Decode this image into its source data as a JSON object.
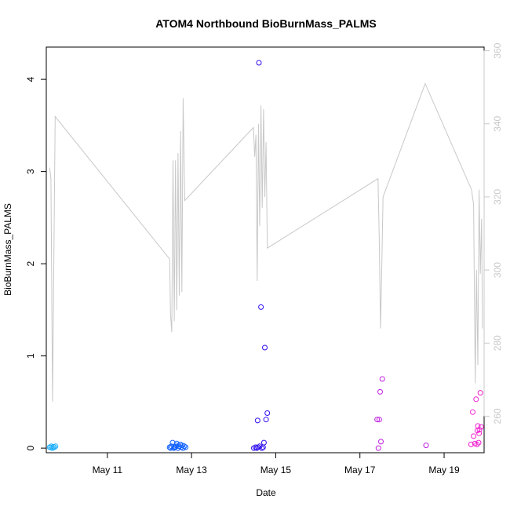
{
  "chart_data": {
    "type": "scatter",
    "title": "ATOM4 Northbound BioBurnMass_PALMS",
    "xlabel": "Date",
    "ylabel": "BioBurnMass_PALMS",
    "xlim": [
      9.55,
      19.95
    ],
    "ylim": [
      -0.05,
      4.35
    ],
    "x_ticks": [
      {
        "value": 11,
        "label": "May 11"
      },
      {
        "value": 13,
        "label": "May 13"
      },
      {
        "value": 15,
        "label": "May 15"
      },
      {
        "value": 17,
        "label": "May 17"
      },
      {
        "value": 19,
        "label": "May 19"
      }
    ],
    "y_ticks": [
      0,
      1,
      2,
      3,
      4
    ],
    "y2lim": [
      250,
      361
    ],
    "y2_ticks": [
      260,
      280,
      300,
      320,
      340,
      360
    ],
    "grid": false,
    "legend": "none",
    "colors": {
      "line": "#c8c8c8",
      "right_axis": "#c8c8c8",
      "axis": "#000000"
    },
    "series": [
      {
        "color": "#20b0ff",
        "points": [
          [
            9.63,
            0.01
          ],
          [
            9.67,
            0.02
          ],
          [
            9.7,
            0.0
          ],
          [
            9.74,
            0.01
          ],
          [
            9.77,
            0.02
          ],
          [
            9.72,
            0.015
          ],
          [
            9.66,
            0.005
          ]
        ]
      },
      {
        "color": "#1060ff",
        "points": [
          [
            12.48,
            0.01
          ],
          [
            12.52,
            0.02
          ],
          [
            12.55,
            0.06
          ],
          [
            12.58,
            0.0
          ],
          [
            12.6,
            0.01
          ],
          [
            12.63,
            0.03
          ],
          [
            12.65,
            0.05
          ],
          [
            12.68,
            0.0
          ],
          [
            12.7,
            0.02
          ],
          [
            12.73,
            0.04
          ],
          [
            12.75,
            0.01
          ],
          [
            12.78,
            0.03
          ],
          [
            12.8,
            0.0
          ],
          [
            12.83,
            0.02
          ],
          [
            12.86,
            0.01
          ],
          [
            12.5,
            0.0
          ],
          [
            12.62,
            0.015
          ]
        ]
      },
      {
        "color": "#3010f0",
        "points": [
          [
            14.48,
            0.0
          ],
          [
            14.52,
            0.01
          ],
          [
            14.55,
            0.0
          ],
          [
            14.57,
            0.3
          ],
          [
            14.6,
            4.18
          ],
          [
            14.62,
            0.02
          ],
          [
            14.65,
            1.53
          ],
          [
            14.67,
            0.0
          ],
          [
            14.7,
            0.01
          ],
          [
            14.72,
            0.06
          ],
          [
            14.74,
            1.09
          ],
          [
            14.77,
            0.31
          ],
          [
            14.8,
            0.38
          ],
          [
            14.58,
            0.01
          ]
        ]
      },
      {
        "color": "#c020e0",
        "points": [
          [
            17.41,
            0.31
          ],
          [
            17.44,
            0.0
          ],
          [
            17.46,
            0.31
          ],
          [
            17.48,
            0.61
          ],
          [
            17.5,
            0.07
          ],
          [
            17.53,
            0.75
          ],
          [
            18.57,
            0.03
          ]
        ]
      },
      {
        "color": "#f020d0",
        "points": [
          [
            19.64,
            0.04
          ],
          [
            19.68,
            0.39
          ],
          [
            19.7,
            0.13
          ],
          [
            19.73,
            0.05
          ],
          [
            19.76,
            0.53
          ],
          [
            19.78,
            0.04
          ],
          [
            19.8,
            0.24
          ],
          [
            19.82,
            0.06
          ],
          [
            19.83,
            0.16
          ],
          [
            19.84,
            0.2
          ],
          [
            19.86,
            0.6
          ],
          [
            19.88,
            0.23
          ],
          [
            19.79,
            0.19
          ]
        ]
      }
    ],
    "line_series": {
      "axis": "right",
      "points": [
        [
          9.63,
          328
        ],
        [
          9.66,
          325
        ],
        [
          9.7,
          264
        ],
        [
          9.76,
          342
        ],
        [
          12.48,
          303
        ],
        [
          12.5,
          288
        ],
        [
          12.53,
          283
        ],
        [
          12.56,
          330
        ],
        [
          12.59,
          286
        ],
        [
          12.62,
          330
        ],
        [
          12.65,
          289
        ],
        [
          12.68,
          332
        ],
        [
          12.71,
          293
        ],
        [
          12.74,
          338
        ],
        [
          12.77,
          294
        ],
        [
          12.8,
          347
        ],
        [
          12.84,
          319
        ],
        [
          14.47,
          339
        ],
        [
          14.5,
          331
        ],
        [
          14.53,
          337
        ],
        [
          14.56,
          297
        ],
        [
          14.59,
          340
        ],
        [
          14.62,
          312
        ],
        [
          14.65,
          345
        ],
        [
          14.68,
          317
        ],
        [
          14.71,
          344
        ],
        [
          14.74,
          320
        ],
        [
          14.77,
          335
        ],
        [
          14.8,
          306
        ],
        [
          17.43,
          325
        ],
        [
          17.46,
          308
        ],
        [
          17.49,
          284
        ],
        [
          17.52,
          301
        ],
        [
          17.55,
          320
        ],
        [
          18.55,
          351
        ],
        [
          19.65,
          322
        ],
        [
          19.7,
          318
        ],
        [
          19.74,
          269
        ],
        [
          19.77,
          300
        ],
        [
          19.8,
          274
        ],
        [
          19.83,
          322
        ],
        [
          19.86,
          299
        ],
        [
          19.89,
          314
        ],
        [
          19.91,
          284
        ]
      ]
    }
  }
}
